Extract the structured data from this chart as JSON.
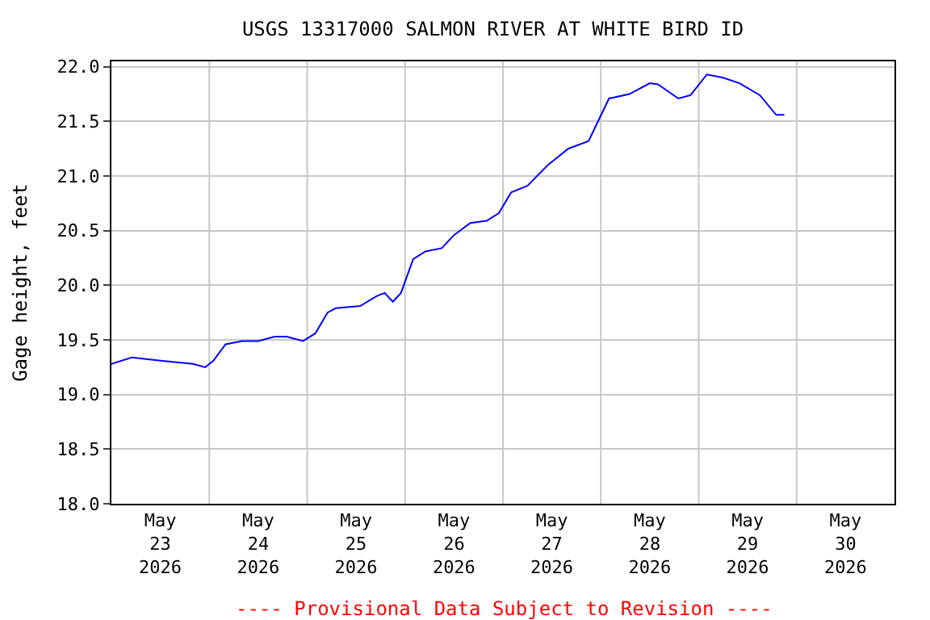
{
  "chart_data": {
    "type": "line",
    "title": "USGS 13317000 SALMON RIVER AT WHITE BIRD ID",
    "ylabel": "Gage height, feet",
    "annotations": [
      "---- Provisional Data Subject to Revision ----"
    ],
    "x": [
      "2026-05-23T00:00",
      "2026-05-23T05:00",
      "2026-05-23T12:00",
      "2026-05-23T20:00",
      "2026-05-23T23:00",
      "2026-05-24T01:00",
      "2026-05-24T04:00",
      "2026-05-24T08:00",
      "2026-05-24T12:00",
      "2026-05-24T16:00",
      "2026-05-24T19:00",
      "2026-05-24T23:00",
      "2026-05-25T02:00",
      "2026-05-25T05:00",
      "2026-05-25T07:00",
      "2026-05-25T13:00",
      "2026-05-25T17:00",
      "2026-05-25T19:00",
      "2026-05-25T21:00",
      "2026-05-25T23:00",
      "2026-05-26T02:00",
      "2026-05-26T05:00",
      "2026-05-26T09:00",
      "2026-05-26T12:00",
      "2026-05-26T16:00",
      "2026-05-26T20:00",
      "2026-05-26T23:00",
      "2026-05-27T02:00",
      "2026-05-27T06:00",
      "2026-05-27T11:00",
      "2026-05-27T16:00",
      "2026-05-27T21:00",
      "2026-05-28T02:00",
      "2026-05-28T07:00",
      "2026-05-28T12:00",
      "2026-05-28T14:00",
      "2026-05-28T19:00",
      "2026-05-28T22:00",
      "2026-05-29T02:00",
      "2026-05-29T06:00",
      "2026-05-29T10:00",
      "2026-05-29T15:00",
      "2026-05-29T19:00",
      "2026-05-29T21:00"
    ],
    "series": [
      {
        "color": "#0000ff",
        "values": [
          19.28,
          19.34,
          19.31,
          19.28,
          19.25,
          19.31,
          19.46,
          19.49,
          19.49,
          19.53,
          19.53,
          19.49,
          19.56,
          19.75,
          19.79,
          19.81,
          19.9,
          19.93,
          19.85,
          19.93,
          20.24,
          20.31,
          20.34,
          20.46,
          20.57,
          20.59,
          20.66,
          20.85,
          20.91,
          21.1,
          21.25,
          21.32,
          21.71,
          21.75,
          21.85,
          21.84,
          21.71,
          21.74,
          21.93,
          21.9,
          21.85,
          21.74,
          21.56,
          21.56
        ]
      }
    ],
    "xlim": [
      "2026-05-23T00:00",
      "2026-05-31T00:00"
    ],
    "xticks": [
      {
        "value": "2026-05-23T12:00",
        "label": "May\n23\n2026"
      },
      {
        "value": "2026-05-24T12:00",
        "label": "May\n24\n2026"
      },
      {
        "value": "2026-05-25T12:00",
        "label": "May\n25\n2026"
      },
      {
        "value": "2026-05-26T12:00",
        "label": "May\n26\n2026"
      },
      {
        "value": "2026-05-27T12:00",
        "label": "May\n27\n2026"
      },
      {
        "value": "2026-05-28T12:00",
        "label": "May\n28\n2026"
      },
      {
        "value": "2026-05-29T12:00",
        "label": "May\n29\n2026"
      },
      {
        "value": "2026-05-30T12:00",
        "label": "May\n30\n2026"
      },
      {
        "value": "2026-05-24T00:00",
        "label": null
      },
      {
        "value": "2026-05-25T00:00",
        "label": null
      },
      {
        "value": "2026-05-26T00:00",
        "label": null
      },
      {
        "value": "2026-05-27T00:00",
        "label": null
      },
      {
        "value": "2026-05-28T00:00",
        "label": null
      },
      {
        "value": "2026-05-29T00:00",
        "label": null
      },
      {
        "value": "2026-05-30T00:00",
        "label": null
      }
    ],
    "ylim": [
      18.0,
      22.05
    ],
    "yticks": [
      {
        "value": 18.0,
        "label": "18.0"
      },
      {
        "value": 18.5,
        "label": "18.5"
      },
      {
        "value": 19.0,
        "label": "19.0"
      },
      {
        "value": 19.5,
        "label": "19.5"
      },
      {
        "value": 20.0,
        "label": "20.0"
      },
      {
        "value": 20.5,
        "label": "20.5"
      },
      {
        "value": 21.0,
        "label": "21.0"
      },
      {
        "value": 21.5,
        "label": "21.5"
      },
      {
        "value": 22.0,
        "label": "22.0"
      }
    ],
    "grid": true,
    "marker": "none",
    "line_style": "solid"
  }
}
